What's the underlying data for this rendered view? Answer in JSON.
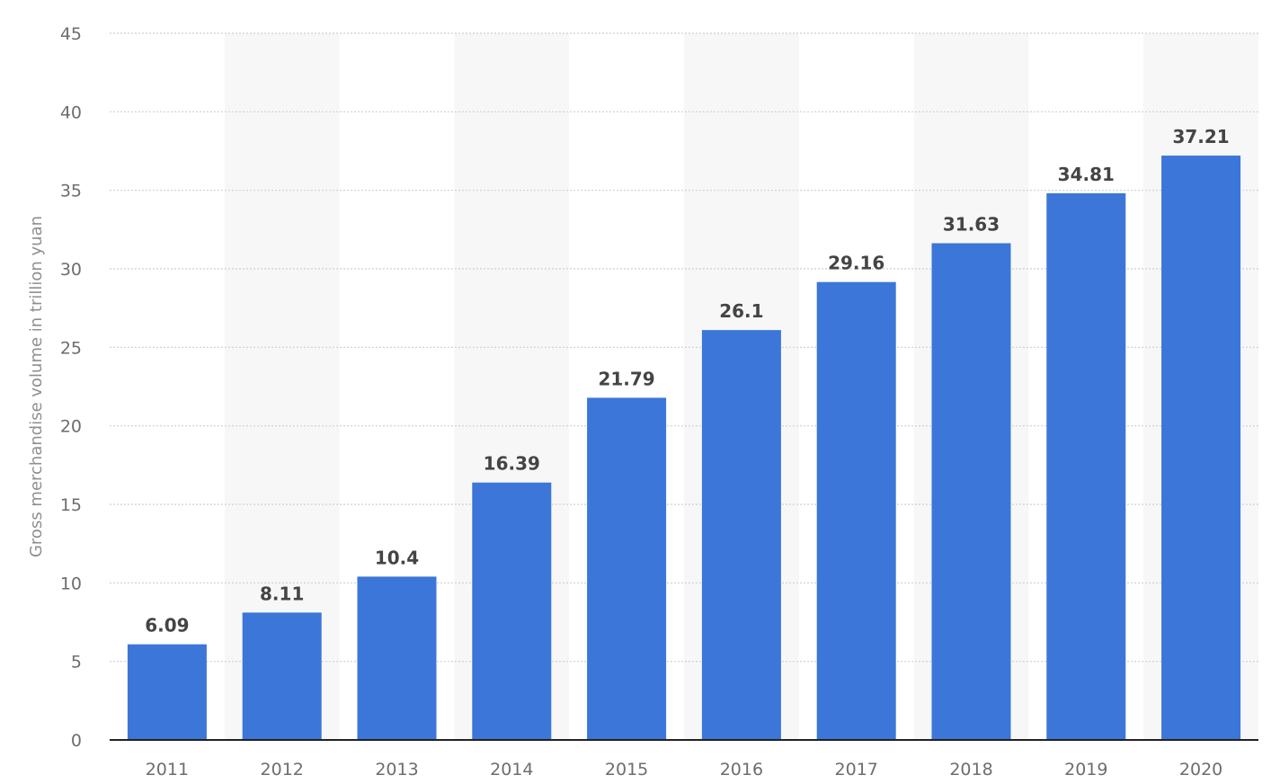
{
  "chart_data": {
    "type": "bar",
    "categories": [
      "2011",
      "2012",
      "2013",
      "2014",
      "2015",
      "2016",
      "2017",
      "2018",
      "2019",
      "2020"
    ],
    "values": [
      6.09,
      8.11,
      10.4,
      16.39,
      21.79,
      26.1,
      29.16,
      31.63,
      34.81,
      37.21
    ],
    "value_labels": [
      "6.09",
      "8.11",
      "10.4",
      "16.39",
      "21.79",
      "26.1",
      "29.16",
      "31.63",
      "34.81",
      "37.21"
    ],
    "ylabel": "Gross merchandise volume in trillion yuan",
    "ylim": [
      0,
      45
    ],
    "yticks": [
      0,
      5,
      10,
      15,
      20,
      25,
      30,
      35,
      40,
      45
    ],
    "grid": true,
    "bar_color": "#3b76d8",
    "band_color": "#f7f7f7"
  }
}
